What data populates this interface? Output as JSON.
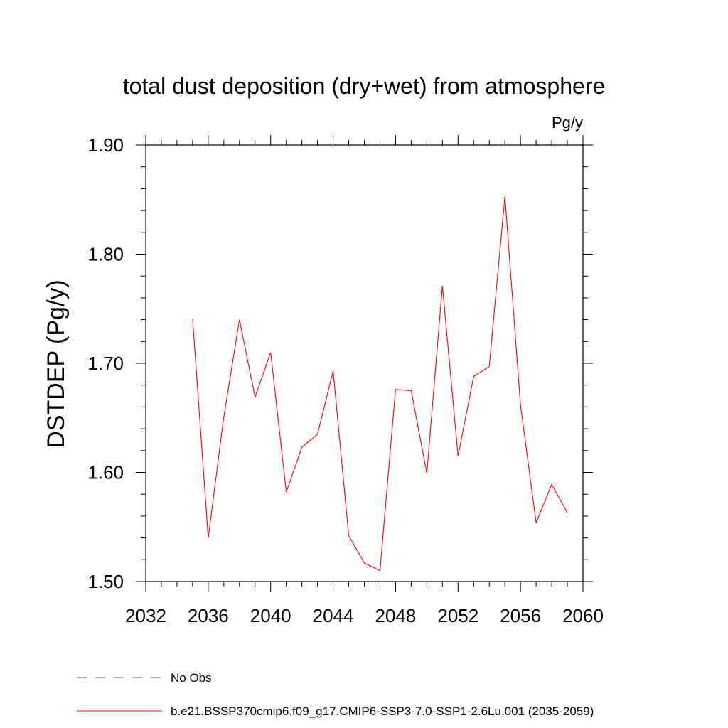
{
  "chart_data": {
    "type": "line",
    "title": "total dust deposition (dry+wet) from atmosphere",
    "units_label": "Pg/y",
    "ylabel": "DSTDEP  (Pg/y)",
    "xlabel": "",
    "xlim": [
      2032,
      2060
    ],
    "ylim": [
      1.5,
      1.9
    ],
    "x_ticks": [
      "2032",
      "2036",
      "2040",
      "2044",
      "2048",
      "2052",
      "2056",
      "2060"
    ],
    "y_ticks": [
      "1.50",
      "1.60",
      "1.70",
      "1.80",
      "1.90"
    ],
    "grid": false,
    "legend_position": "bottom-left",
    "x": [
      2035,
      2036,
      2037,
      2038,
      2039,
      2040,
      2041,
      2042,
      2043,
      2044,
      2045,
      2046,
      2047,
      2048,
      2049,
      2050,
      2051,
      2052,
      2053,
      2054,
      2055,
      2056,
      2057,
      2058,
      2059
    ],
    "series": [
      {
        "name": "b.e21.BSSP370cmip6.f09_g17.CMIP6-SSP3-7.0-SSP1-2.6Lu.001 (2035-2059)",
        "color": "#ff0000",
        "values": [
          1.741,
          1.54,
          1.651,
          1.74,
          1.669,
          1.71,
          1.582,
          1.623,
          1.635,
          1.693,
          1.542,
          1.517,
          1.51,
          1.676,
          1.675,
          1.599,
          1.771,
          1.615,
          1.688,
          1.697,
          1.853,
          1.662,
          1.554,
          1.589,
          1.563
        ]
      }
    ],
    "legend": [
      {
        "label": "No Obs",
        "color": "#6a5acd",
        "dashed": true
      },
      {
        "label": "b.e21.BSSP370cmip6.f09_g17.CMIP6-SSP3-7.0-SSP1-2.6Lu.001 (2035-2059)",
        "color": "#ff0000",
        "dashed": false
      }
    ]
  }
}
